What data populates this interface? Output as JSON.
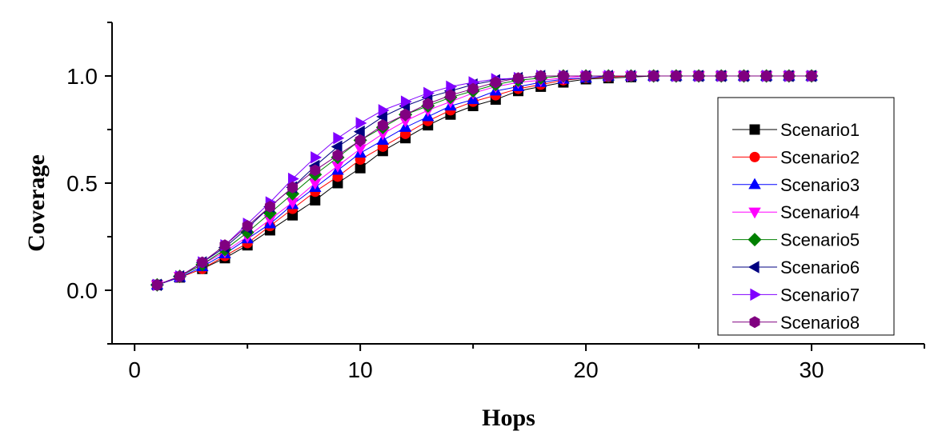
{
  "chart_data": {
    "type": "line",
    "title": "",
    "xlabel": "Hops",
    "ylabel": "Coverage",
    "xlim": [
      -1,
      35
    ],
    "ylim": [
      -0.25,
      1.25
    ],
    "xticks": [
      0,
      10,
      20,
      30
    ],
    "yticks": [
      0.0,
      0.5,
      1.0
    ],
    "xtick_labels": [
      "0",
      "10",
      "20",
      "30"
    ],
    "ytick_labels": [
      "0.0",
      "0.5",
      "1.0"
    ],
    "grid": false,
    "legend_position": "right",
    "x": [
      1,
      2,
      3,
      4,
      5,
      6,
      7,
      8,
      9,
      10,
      11,
      12,
      13,
      14,
      15,
      16,
      17,
      18,
      19,
      20,
      21,
      22,
      23,
      24,
      25,
      26,
      27,
      28,
      29,
      30
    ],
    "series": [
      {
        "name": "Scenario1",
        "color": "#000000",
        "marker": "square",
        "values": [
          0.025,
          0.06,
          0.1,
          0.15,
          0.21,
          0.28,
          0.35,
          0.42,
          0.5,
          0.57,
          0.65,
          0.71,
          0.77,
          0.82,
          0.86,
          0.89,
          0.93,
          0.95,
          0.97,
          0.985,
          0.99,
          0.995,
          1.0,
          1.0,
          1.0,
          1.0,
          1.0,
          1.0,
          1.0,
          1.0
        ]
      },
      {
        "name": "Scenario2",
        "color": "#ff0000",
        "marker": "circle",
        "values": [
          0.025,
          0.06,
          0.1,
          0.16,
          0.22,
          0.3,
          0.38,
          0.46,
          0.53,
          0.61,
          0.67,
          0.73,
          0.79,
          0.84,
          0.88,
          0.91,
          0.94,
          0.96,
          0.98,
          0.99,
          0.995,
          1.0,
          1.0,
          1.0,
          1.0,
          1.0,
          1.0,
          1.0,
          1.0,
          1.0
        ]
      },
      {
        "name": "Scenario3",
        "color": "#0000ff",
        "marker": "triangle-up",
        "values": [
          0.025,
          0.06,
          0.11,
          0.17,
          0.24,
          0.31,
          0.4,
          0.48,
          0.56,
          0.64,
          0.7,
          0.76,
          0.81,
          0.86,
          0.89,
          0.93,
          0.95,
          0.97,
          0.985,
          0.99,
          1.0,
          1.0,
          1.0,
          1.0,
          1.0,
          1.0,
          1.0,
          1.0,
          1.0,
          1.0
        ]
      },
      {
        "name": "Scenario4",
        "color": "#ff00ff",
        "marker": "triangle-down",
        "values": [
          0.025,
          0.065,
          0.12,
          0.18,
          0.25,
          0.33,
          0.41,
          0.5,
          0.58,
          0.66,
          0.73,
          0.79,
          0.84,
          0.88,
          0.92,
          0.95,
          0.97,
          0.98,
          0.99,
          1.0,
          1.0,
          1.0,
          1.0,
          1.0,
          1.0,
          1.0,
          1.0,
          1.0,
          1.0,
          1.0
        ]
      },
      {
        "name": "Scenario5",
        "color": "#008000",
        "marker": "diamond",
        "values": [
          0.025,
          0.065,
          0.12,
          0.19,
          0.27,
          0.36,
          0.45,
          0.54,
          0.62,
          0.7,
          0.76,
          0.82,
          0.86,
          0.9,
          0.93,
          0.96,
          0.98,
          0.99,
          1.0,
          1.0,
          1.0,
          1.0,
          1.0,
          1.0,
          1.0,
          1.0,
          1.0,
          1.0,
          1.0,
          1.0
        ]
      },
      {
        "name": "Scenario6",
        "color": "#000080",
        "marker": "triangle-left",
        "values": [
          0.025,
          0.065,
          0.13,
          0.2,
          0.29,
          0.39,
          0.48,
          0.58,
          0.67,
          0.74,
          0.81,
          0.86,
          0.9,
          0.93,
          0.96,
          0.98,
          0.99,
          1.0,
          1.0,
          1.0,
          1.0,
          1.0,
          1.0,
          1.0,
          1.0,
          1.0,
          1.0,
          1.0,
          1.0,
          1.0
        ]
      },
      {
        "name": "Scenario7",
        "color": "#8000ff",
        "marker": "triangle-right",
        "values": [
          0.025,
          0.065,
          0.13,
          0.21,
          0.31,
          0.41,
          0.52,
          0.62,
          0.71,
          0.78,
          0.84,
          0.88,
          0.92,
          0.95,
          0.97,
          0.985,
          0.99,
          1.0,
          1.0,
          1.0,
          1.0,
          1.0,
          1.0,
          1.0,
          1.0,
          1.0,
          1.0,
          1.0,
          1.0,
          1.0
        ]
      },
      {
        "name": "Scenario8",
        "color": "#800080",
        "marker": "hexagon",
        "values": [
          0.025,
          0.065,
          0.13,
          0.21,
          0.3,
          0.39,
          0.48,
          0.56,
          0.63,
          0.7,
          0.77,
          0.82,
          0.87,
          0.91,
          0.94,
          0.97,
          0.99,
          1.0,
          1.0,
          1.0,
          1.0,
          1.0,
          1.0,
          1.0,
          1.0,
          1.0,
          1.0,
          1.0,
          1.0,
          1.0
        ]
      }
    ]
  }
}
